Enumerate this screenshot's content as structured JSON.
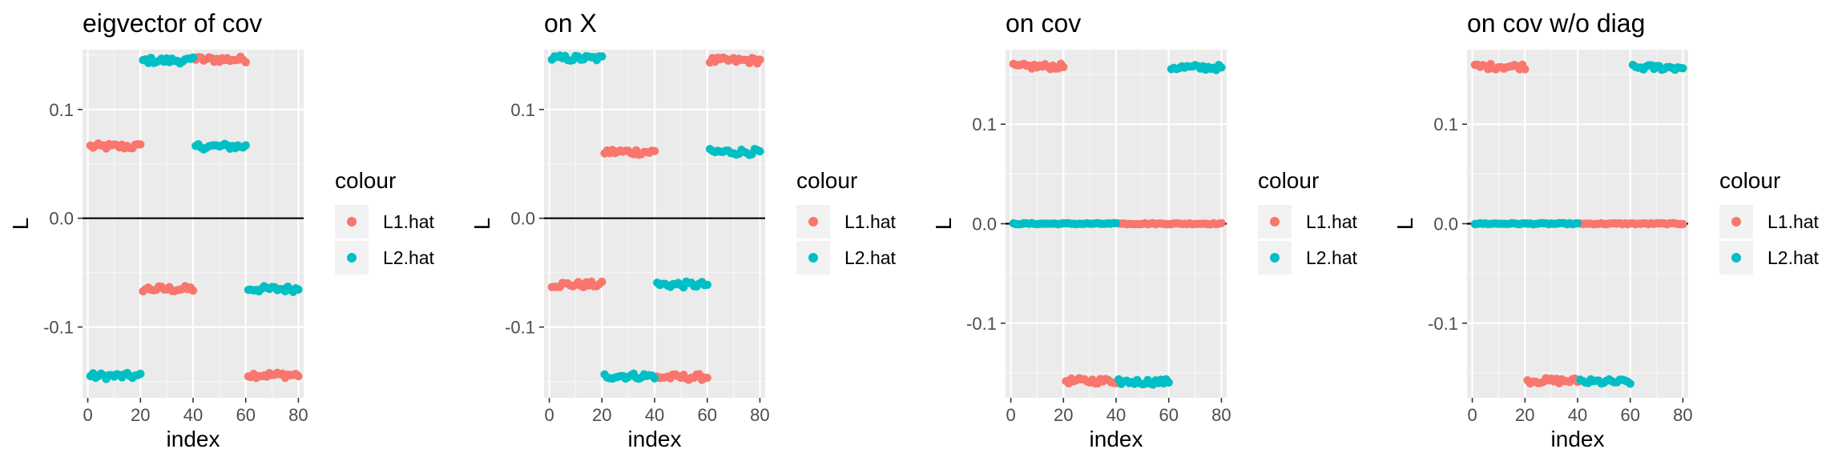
{
  "chart_data": [
    {
      "type": "scatter",
      "title": "eigvector of cov",
      "xlabel": "index",
      "ylabel": "L",
      "xlim": [
        -2,
        82
      ],
      "ylim": [
        -0.165,
        0.155
      ],
      "xticks": [
        0,
        20,
        40,
        60,
        80
      ],
      "xtick_labels": [
        "0",
        "20",
        "40",
        "60",
        "80"
      ],
      "yticks": [
        -0.1,
        0.0,
        0.1
      ],
      "ytick_labels": [
        "-0.1",
        "0.0",
        "0.1"
      ],
      "hline": 0,
      "legend": {
        "title": "colour",
        "position": "right",
        "entries": [
          "L1.hat",
          "L2.hat"
        ]
      },
      "series": [
        {
          "name": "L1.hat",
          "color": "#F8766D",
          "segments": [
            {
              "x": [
                1,
                20
              ],
              "y": 0.066
            },
            {
              "x": [
                21,
                40
              ],
              "y": -0.065
            },
            {
              "x": [
                41,
                60
              ],
              "y": 0.146
            },
            {
              "x": [
                61,
                80
              ],
              "y": -0.144
            }
          ]
        },
        {
          "name": "L2.hat",
          "color": "#00BFC4",
          "segments": [
            {
              "x": [
                1,
                20
              ],
              "y": -0.145
            },
            {
              "x": [
                21,
                40
              ],
              "y": 0.145
            },
            {
              "x": [
                41,
                60
              ],
              "y": 0.066
            },
            {
              "x": [
                61,
                80
              ],
              "y": -0.065
            }
          ]
        }
      ]
    },
    {
      "type": "scatter",
      "title": "on X",
      "xlabel": "index",
      "ylabel": "L",
      "xlim": [
        -2,
        82
      ],
      "ylim": [
        -0.165,
        0.155
      ],
      "xticks": [
        0,
        20,
        40,
        60,
        80
      ],
      "xtick_labels": [
        "0",
        "20",
        "40",
        "60",
        "80"
      ],
      "yticks": [
        -0.1,
        0.0,
        0.1
      ],
      "ytick_labels": [
        "-0.1",
        "0.0",
        "0.1"
      ],
      "hline": 0,
      "legend": {
        "title": "colour",
        "position": "right",
        "entries": [
          "L1.hat",
          "L2.hat"
        ]
      },
      "series": [
        {
          "name": "L1.hat",
          "color": "#F8766D",
          "segments": [
            {
              "x": [
                1,
                20
              ],
              "y": -0.061
            },
            {
              "x": [
                21,
                40
              ],
              "y": 0.061
            },
            {
              "x": [
                41,
                60
              ],
              "y": -0.146
            },
            {
              "x": [
                61,
                80
              ],
              "y": 0.145
            }
          ]
        },
        {
          "name": "L2.hat",
          "color": "#00BFC4",
          "segments": [
            {
              "x": [
                1,
                20
              ],
              "y": 0.147
            },
            {
              "x": [
                21,
                40
              ],
              "y": -0.145
            },
            {
              "x": [
                41,
                60
              ],
              "y": -0.061
            },
            {
              "x": [
                61,
                80
              ],
              "y": 0.061
            }
          ]
        }
      ]
    },
    {
      "type": "scatter",
      "title": "on cov",
      "xlabel": "index",
      "ylabel": "L",
      "xlim": [
        -2,
        82
      ],
      "ylim": [
        -0.175,
        0.175
      ],
      "xticks": [
        0,
        20,
        40,
        60,
        80
      ],
      "xtick_labels": [
        "0",
        "20",
        "40",
        "60",
        "80"
      ],
      "yticks": [
        -0.1,
        0.0,
        0.1
      ],
      "ytick_labels": [
        "-0.1",
        "0.0",
        "0.1"
      ],
      "hline": 0,
      "legend": {
        "title": "colour",
        "position": "right",
        "entries": [
          "L1.hat",
          "L2.hat"
        ]
      },
      "series": [
        {
          "name": "L1.hat",
          "color": "#F8766D",
          "segments": [
            {
              "x": [
                1,
                20
              ],
              "y": 0.158
            },
            {
              "x": [
                21,
                40
              ],
              "y": -0.158
            },
            {
              "x": [
                41,
                80
              ],
              "y": 0.0
            }
          ]
        },
        {
          "name": "L2.hat",
          "color": "#00BFC4",
          "segments": [
            {
              "x": [
                1,
                40
              ],
              "y": 0.0
            },
            {
              "x": [
                41,
                60
              ],
              "y": -0.159
            },
            {
              "x": [
                61,
                80
              ],
              "y": 0.157
            }
          ]
        }
      ]
    },
    {
      "type": "scatter",
      "title": "on cov w/o diag",
      "xlabel": "index",
      "ylabel": "L",
      "xlim": [
        -2,
        82
      ],
      "ylim": [
        -0.175,
        0.175
      ],
      "xticks": [
        0,
        20,
        40,
        60,
        80
      ],
      "xtick_labels": [
        "0",
        "20",
        "40",
        "60",
        "80"
      ],
      "yticks": [
        -0.1,
        0.0,
        0.1
      ],
      "ytick_labels": [
        "-0.1",
        "0.0",
        "0.1"
      ],
      "hline": 0,
      "legend": {
        "title": "colour",
        "position": "right",
        "entries": [
          "L1.hat",
          "L2.hat"
        ]
      },
      "series": [
        {
          "name": "L1.hat",
          "color": "#F8766D",
          "segments": [
            {
              "x": [
                1,
                20
              ],
              "y": 0.158
            },
            {
              "x": [
                21,
                40
              ],
              "y": -0.158
            },
            {
              "x": [
                41,
                80
              ],
              "y": 0.0
            }
          ]
        },
        {
          "name": "L2.hat",
          "color": "#00BFC4",
          "segments": [
            {
              "x": [
                1,
                40
              ],
              "y": 0.0
            },
            {
              "x": [
                41,
                60
              ],
              "y": -0.159
            },
            {
              "x": [
                61,
                80
              ],
              "y": 0.157
            }
          ]
        }
      ]
    }
  ]
}
